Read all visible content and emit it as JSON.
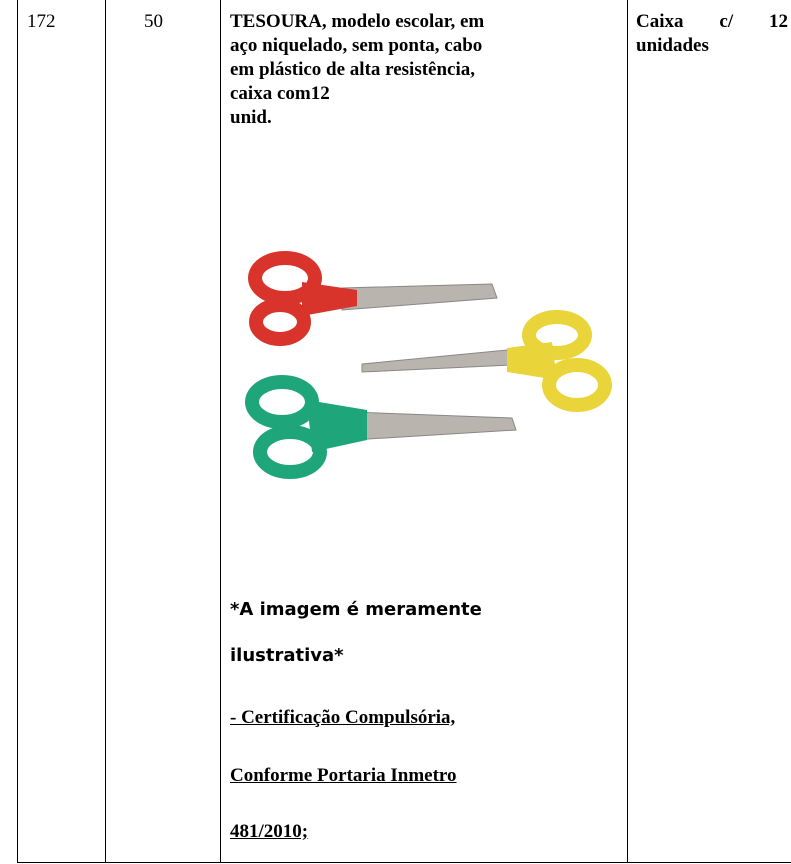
{
  "table": {
    "rows": [
      {
        "item": "172",
        "quantity": "50",
        "description": [
          "TESOURA, modelo escolar, em",
          "aço niquelado, sem ponta, cabo",
          "em plástico de alta resistência,",
          "caixa com12",
          "unid."
        ],
        "image_note": [
          "*A imagem é meramente",
          "ilustrativa*"
        ],
        "certification": [
          "- Certificação Compulsória,",
          "Conforme Portaria Inmetro",
          "481/2010;"
        ],
        "unit": [
          "Caixa c/ 12",
          "unidades"
        ]
      }
    ]
  }
}
